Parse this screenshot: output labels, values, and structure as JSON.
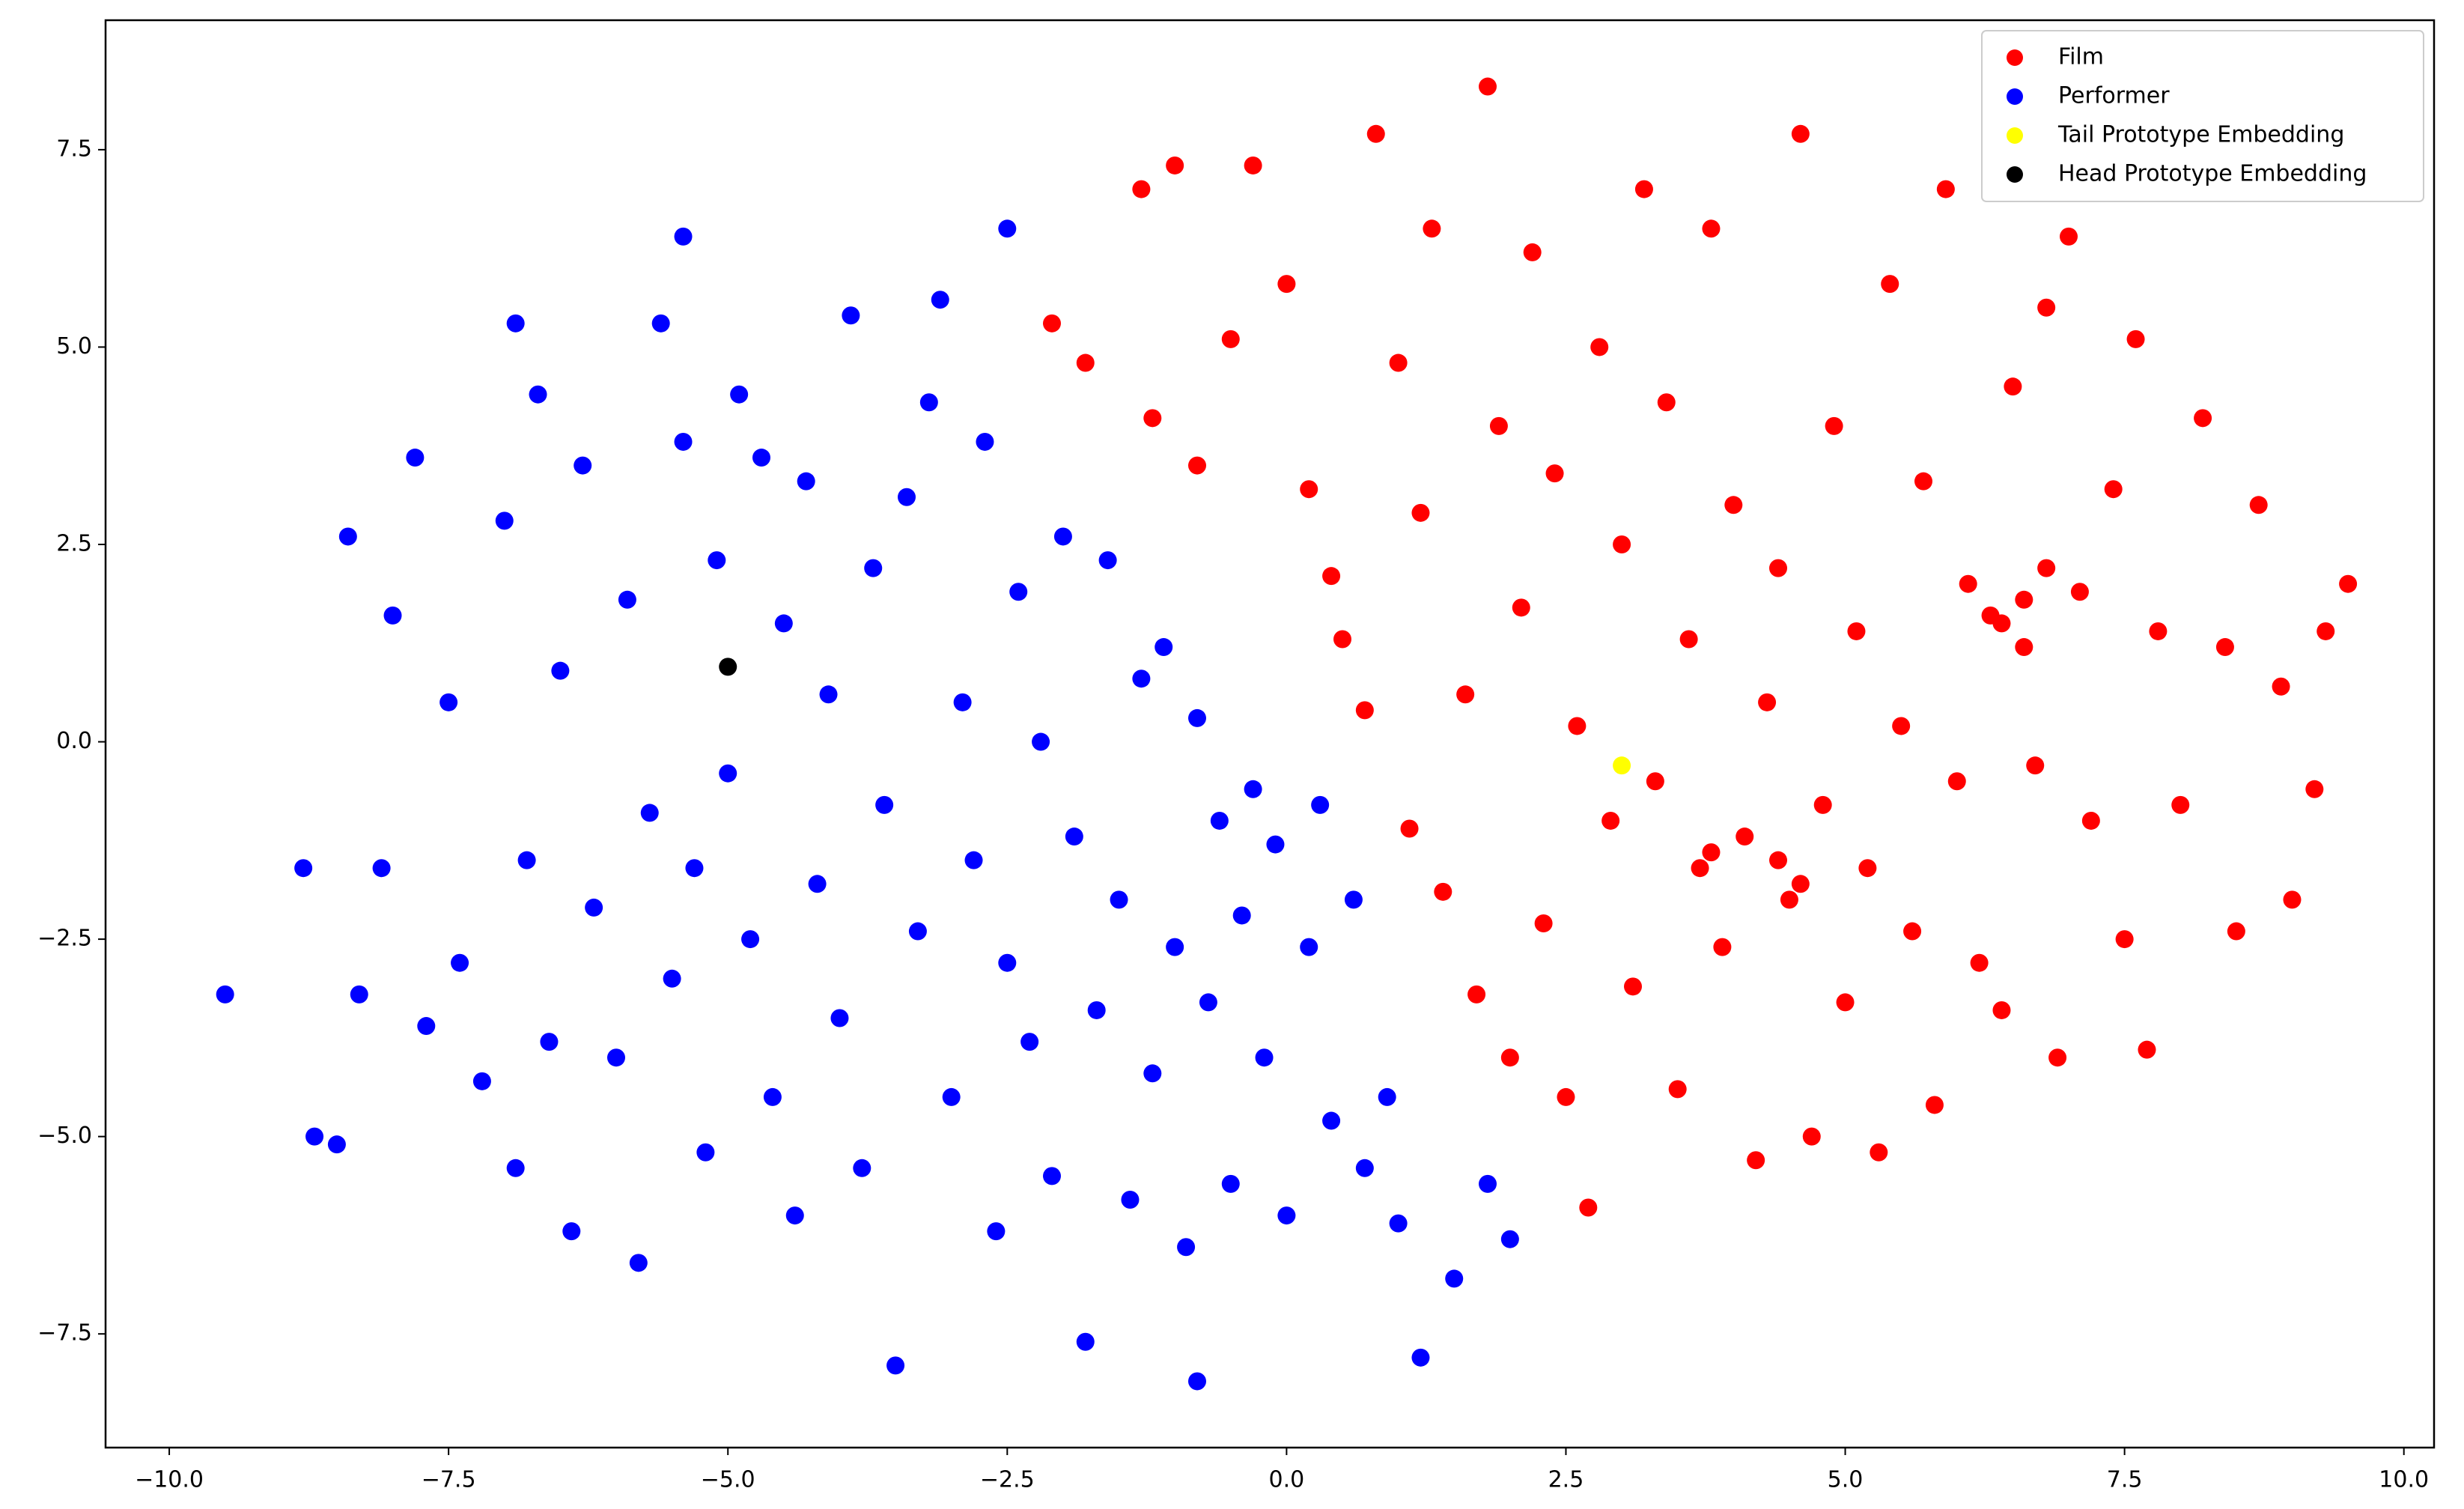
{
  "chart_data": {
    "type": "scatter",
    "xlim": [
      -10.57,
      10.27
    ],
    "ylim": [
      -8.94,
      9.14
    ],
    "xticks": [
      {
        "value": -10,
        "label": "−10.0"
      },
      {
        "value": -7.5,
        "label": "−7.5"
      },
      {
        "value": -5,
        "label": "−5.0"
      },
      {
        "value": -2.5,
        "label": "−2.5"
      },
      {
        "value": 0,
        "label": "0.0"
      },
      2.5,
      {
        "value": 5,
        "label": "5.0"
      },
      7.5,
      {
        "value": 10,
        "label": "10.0"
      }
    ],
    "yticks": [
      {
        "value": -7.5,
        "label": "−7.5"
      },
      {
        "value": -5,
        "label": "−5.0"
      },
      {
        "value": -2.5,
        "label": "−2.5"
      },
      {
        "value": 0,
        "label": "0.0"
      },
      2.5,
      {
        "value": 5,
        "label": "5.0"
      },
      7.5
    ],
    "legend": "upper right",
    "series": [
      {
        "name": "Film",
        "color": "#ff0000",
        "x": [
          -2.1,
          -1.8,
          -1.2,
          -1.3,
          -1.0,
          -0.8,
          -0.5,
          -0.3,
          0.0,
          0.2,
          0.4,
          0.5,
          0.7,
          0.8,
          1.0,
          1.1,
          1.2,
          1.3,
          1.4,
          1.6,
          1.7,
          1.8,
          1.9,
          2.0,
          2.1,
          2.2,
          2.3,
          2.4,
          2.5,
          2.6,
          2.7,
          2.8,
          2.9,
          3.0,
          3.1,
          3.2,
          3.3,
          3.4,
          3.5,
          3.6,
          3.7,
          3.8,
          3.9,
          4.0,
          4.1,
          4.2,
          4.3,
          4.4,
          4.5,
          4.6,
          4.7,
          4.8,
          4.9,
          5.0,
          5.1,
          5.2,
          5.3,
          5.4,
          5.5,
          5.6,
          5.7,
          5.8,
          5.9,
          6.0,
          6.1,
          6.2,
          6.3,
          6.4,
          6.5,
          6.6,
          6.7,
          6.8,
          6.9,
          7.0,
          7.1,
          7.2,
          7.4,
          7.5,
          7.6,
          7.7,
          7.8,
          8.0,
          8.2,
          8.4,
          8.5,
          8.7,
          8.9,
          9.0,
          9.2,
          9.3,
          9.5,
          6.6,
          6.8,
          6.4,
          4.4,
          3.8,
          4.6
        ],
        "values": [
          5.3,
          4.8,
          4.1,
          7.0,
          7.3,
          3.5,
          5.1,
          7.3,
          5.8,
          3.2,
          2.1,
          1.3,
          0.4,
          7.7,
          4.8,
          -1.1,
          2.9,
          6.5,
          -1.9,
          0.6,
          -3.2,
          8.3,
          4.0,
          -4.0,
          1.7,
          6.2,
          -2.3,
          3.4,
          -4.5,
          0.2,
          -5.9,
          5.0,
          -1.0,
          2.5,
          -3.1,
          7.0,
          -0.5,
          4.3,
          -4.4,
          1.3,
          -1.6,
          6.5,
          -2.6,
          3.0,
          -1.2,
          -5.3,
          0.5,
          2.2,
          -2.0,
          7.7,
          -5.0,
          -0.8,
          4.0,
          -3.3,
          1.4,
          -1.6,
          -5.2,
          5.8,
          0.2,
          -2.4,
          3.3,
          -4.6,
          7.0,
          -0.5,
          2.0,
          -2.8,
          1.6,
          -3.4,
          4.5,
          1.2,
          -0.3,
          5.5,
          -4.0,
          6.4,
          1.9,
          -1.0,
          3.2,
          -2.5,
          5.1,
          -3.9,
          1.4,
          -0.8,
          4.1,
          1.2,
          -2.4,
          3.0,
          0.7,
          -2.0,
          -0.6,
          1.4,
          2.0,
          1.8,
          2.2,
          1.5,
          -1.5,
          -1.4,
          -1.8
        ]
      },
      {
        "name": "Performer",
        "color": "#0000ff",
        "x": [
          -9.5,
          -8.8,
          -8.7,
          -8.5,
          -8.4,
          -8.3,
          -8.1,
          -8.0,
          -7.8,
          -7.7,
          -7.5,
          -7.4,
          -7.2,
          -7.0,
          -6.9,
          -6.9,
          -6.8,
          -6.7,
          -6.6,
          -6.5,
          -6.4,
          -6.3,
          -6.2,
          -6.0,
          -5.9,
          -5.8,
          -5.7,
          -5.6,
          -5.5,
          -5.4,
          -5.4,
          -5.3,
          -5.2,
          -5.1,
          -5.0,
          -4.9,
          -4.8,
          -4.7,
          -4.6,
          -4.5,
          -4.4,
          -4.3,
          -4.2,
          -4.1,
          -4.0,
          -3.9,
          -3.8,
          -3.7,
          -3.6,
          -3.5,
          -3.4,
          -3.3,
          -3.2,
          -3.1,
          -3.0,
          -2.9,
          -2.8,
          -2.7,
          -2.6,
          -2.5,
          -2.5,
          -2.4,
          -2.3,
          -2.2,
          -2.1,
          -2.0,
          -1.9,
          -1.8,
          -1.7,
          -1.6,
          -1.5,
          -1.4,
          -1.3,
          -1.2,
          -1.1,
          -1.0,
          -0.9,
          -0.8,
          -0.8,
          -0.7,
          -0.6,
          -0.5,
          -0.4,
          -0.3,
          -0.2,
          -0.1,
          0.0,
          0.2,
          0.3,
          0.4,
          0.6,
          0.7,
          0.9,
          1.0,
          1.2,
          1.5,
          1.8,
          2.0
        ],
        "values": [
          -3.2,
          -1.6,
          -5.0,
          -5.1,
          2.6,
          -3.2,
          -1.6,
          1.6,
          3.6,
          -3.6,
          0.5,
          -2.8,
          -4.3,
          2.8,
          5.3,
          -5.4,
          -1.5,
          4.4,
          -3.8,
          0.9,
          -6.2,
          3.5,
          -2.1,
          -4.0,
          1.8,
          -6.6,
          -0.9,
          5.3,
          -3.0,
          6.4,
          3.8,
          -1.6,
          -5.2,
          2.3,
          -0.4,
          4.4,
          -2.5,
          3.6,
          -4.5,
          1.5,
          -6.0,
          3.3,
          -1.8,
          0.6,
          -3.5,
          5.4,
          -5.4,
          2.2,
          -0.8,
          -7.9,
          3.1,
          -2.4,
          4.3,
          5.6,
          -4.5,
          0.5,
          -1.5,
          3.8,
          -6.2,
          6.5,
          -2.8,
          1.9,
          -3.8,
          0.0,
          -5.5,
          2.6,
          -1.2,
          -7.6,
          -3.4,
          2.3,
          -2.0,
          -5.8,
          0.8,
          -4.2,
          1.2,
          -2.6,
          -6.4,
          -8.1,
          0.3,
          -3.3,
          -1.0,
          -5.6,
          -2.2,
          -0.6,
          -4.0,
          -1.3,
          -6.0,
          -2.6,
          -0.8,
          -4.8,
          -2.0,
          -5.4,
          -4.5,
          -6.1,
          -7.8,
          -6.8,
          -5.6,
          -6.3
        ]
      },
      {
        "name": "Tail Prototype Embedding",
        "color": "#ffff00",
        "x": [
          3.0
        ],
        "values": [
          -0.3
        ]
      },
      {
        "name": "Head Prototype Embedding",
        "color": "#000000",
        "x": [
          -5.0
        ],
        "values": [
          0.95
        ]
      }
    ]
  }
}
